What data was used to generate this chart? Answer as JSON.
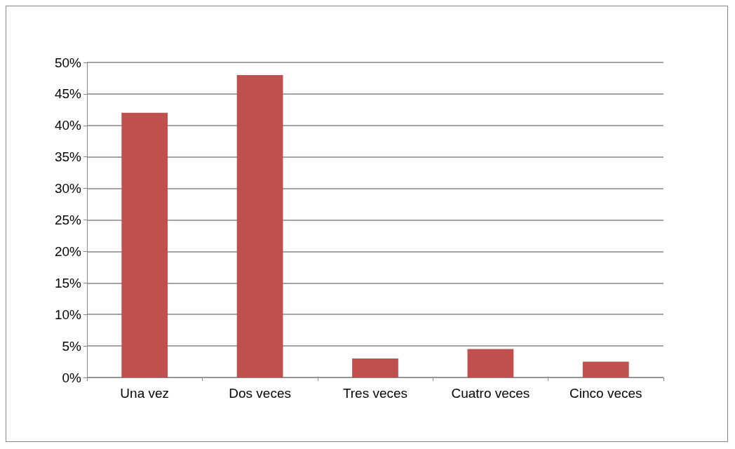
{
  "chart_data": {
    "type": "bar",
    "categories": [
      "Una vez",
      "Dos veces",
      "Tres veces",
      "Cuatro veces",
      "Cinco veces"
    ],
    "values": [
      42,
      48,
      3,
      4.5,
      2.5
    ],
    "color": "#c0504d",
    "ylim": [
      0,
      50
    ],
    "yticks": [
      {
        "value": 0,
        "label": "0%"
      },
      {
        "value": 5,
        "label": "5%"
      },
      {
        "value": 10,
        "label": "10%"
      },
      {
        "value": 15,
        "label": "15%"
      },
      {
        "value": 20,
        "label": "20%"
      },
      {
        "value": 25,
        "label": "25%"
      },
      {
        "value": 30,
        "label": "30%"
      },
      {
        "value": 35,
        "label": "35%"
      },
      {
        "value": 40,
        "label": "40%"
      },
      {
        "value": 45,
        "label": "45%"
      },
      {
        "value": 50,
        "label": "50%"
      }
    ],
    "grid": "y"
  }
}
